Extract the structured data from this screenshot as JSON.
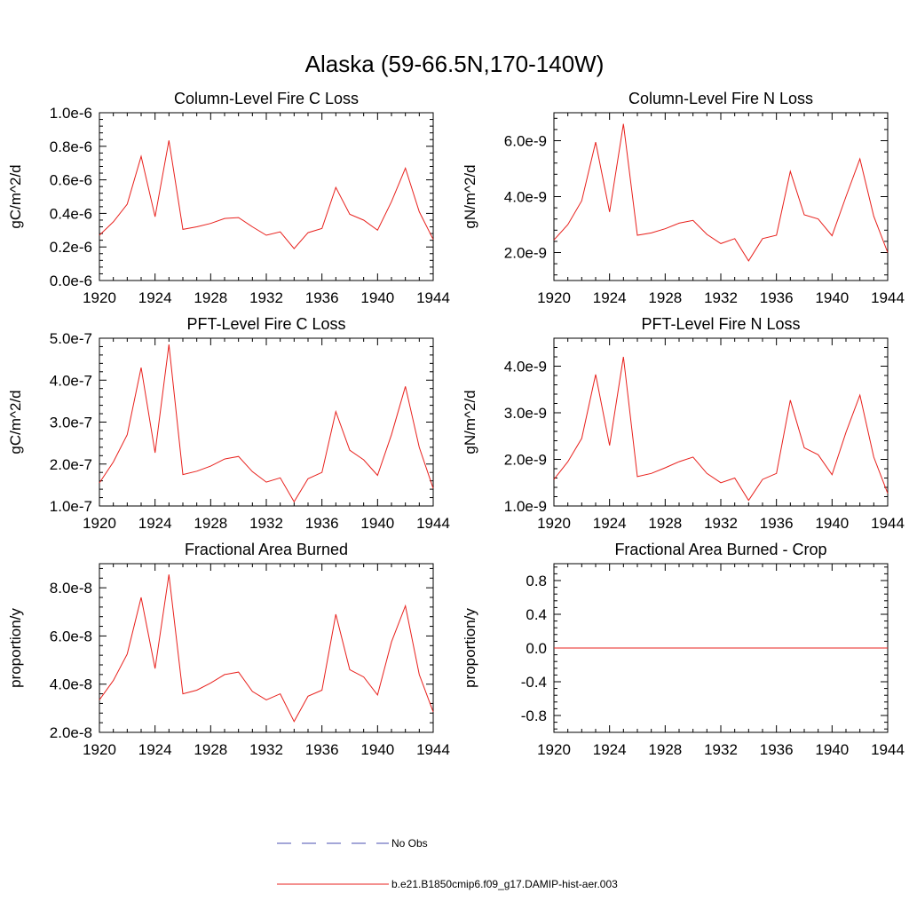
{
  "figure": {
    "title": "Alaska (59-66.5N,170-140W)"
  },
  "colors": {
    "model": "#e8201c",
    "obs": "#4a4fb0",
    "axis": "#000000"
  },
  "legend": {
    "obs_label": "No Obs",
    "model_label": "b.e21.B1850cmip6.f09_g17.DAMIP-hist-aer.003"
  },
  "chart_data": [
    {
      "type": "line",
      "title": "Column-Level Fire C Loss",
      "ylabel": "gC/m^2/d",
      "xlim": [
        1920,
        1944
      ],
      "ylim": [
        0,
        1e-06
      ],
      "xticks": [
        1920,
        1924,
        1928,
        1932,
        1936,
        1940,
        1944
      ],
      "yticks": [
        0,
        2e-07,
        4e-07,
        6e-07,
        8e-07,
        1e-06
      ],
      "ytick_labels": [
        "0.0e-6",
        "0.2e-6",
        "0.4e-6",
        "0.6e-6",
        "0.8e-6",
        "1.0e-6"
      ],
      "x": [
        1920,
        1921,
        1922,
        1923,
        1924,
        1925,
        1926,
        1927,
        1928,
        1929,
        1930,
        1931,
        1932,
        1933,
        1934,
        1935,
        1936,
        1937,
        1938,
        1939,
        1940,
        1941,
        1942,
        1943,
        1944
      ],
      "series": [
        {
          "name": "b.e21.B1850cmip6.f09_g17.DAMIP-hist-aer.003",
          "values": [
            2.7e-07,
            3.5e-07,
            4.55e-07,
            7.4e-07,
            3.8e-07,
            8.35e-07,
            3.05e-07,
            3.2e-07,
            3.4e-07,
            3.7e-07,
            3.75e-07,
            3.2e-07,
            2.7e-07,
            2.9e-07,
            1.9e-07,
            2.85e-07,
            3.1e-07,
            5.55e-07,
            3.95e-07,
            3.6e-07,
            3e-07,
            4.7e-07,
            6.7e-07,
            4.1e-07,
            2.45e-07
          ]
        }
      ]
    },
    {
      "type": "line",
      "title": "Column-Level Fire N Loss",
      "ylabel": "gN/m^2/d",
      "xlim": [
        1920,
        1944
      ],
      "ylim": [
        1e-09,
        7e-09
      ],
      "xticks": [
        1920,
        1924,
        1928,
        1932,
        1936,
        1940,
        1944
      ],
      "yticks": [
        2e-09,
        4e-09,
        6e-09
      ],
      "ytick_labels": [
        "2.0e-9",
        "4.0e-9",
        "6.0e-9"
      ],
      "x": [
        1920,
        1921,
        1922,
        1923,
        1924,
        1925,
        1926,
        1927,
        1928,
        1929,
        1930,
        1931,
        1932,
        1933,
        1934,
        1935,
        1936,
        1937,
        1938,
        1939,
        1940,
        1941,
        1942,
        1943,
        1944
      ],
      "series": [
        {
          "name": "b.e21.B1850cmip6.f09_g17.DAMIP-hist-aer.003",
          "values": [
            2.45e-09,
            3e-09,
            3.85e-09,
            5.95e-09,
            3.45e-09,
            6.6e-09,
            2.62e-09,
            2.7e-09,
            2.85e-09,
            3.05e-09,
            3.15e-09,
            2.65e-09,
            2.32e-09,
            2.5e-09,
            1.7e-09,
            2.5e-09,
            2.62e-09,
            4.9e-09,
            3.35e-09,
            3.2e-09,
            2.6e-09,
            4e-09,
            5.35e-09,
            3.3e-09,
            2e-09
          ]
        }
      ]
    },
    {
      "type": "line",
      "title": "PFT-Level Fire C Loss",
      "ylabel": "gC/m^2/d",
      "xlim": [
        1920,
        1944
      ],
      "ylim": [
        1e-07,
        5e-07
      ],
      "xticks": [
        1920,
        1924,
        1928,
        1932,
        1936,
        1940,
        1944
      ],
      "yticks": [
        1e-07,
        2e-07,
        3e-07,
        4e-07,
        5e-07
      ],
      "ytick_labels": [
        "1.0e-7",
        "2.0e-7",
        "3.0e-7",
        "4.0e-7",
        "5.0e-7"
      ],
      "x": [
        1920,
        1921,
        1922,
        1923,
        1924,
        1925,
        1926,
        1927,
        1928,
        1929,
        1930,
        1931,
        1932,
        1933,
        1934,
        1935,
        1936,
        1937,
        1938,
        1939,
        1940,
        1941,
        1942,
        1943,
        1944
      ],
      "series": [
        {
          "name": "b.e21.B1850cmip6.f09_g17.DAMIP-hist-aer.003",
          "values": [
            1.55e-07,
            2.05e-07,
            2.7e-07,
            4.3e-07,
            2.27e-07,
            4.85e-07,
            1.75e-07,
            1.83e-07,
            1.95e-07,
            2.12e-07,
            2.18e-07,
            1.82e-07,
            1.57e-07,
            1.67e-07,
            1.1e-07,
            1.65e-07,
            1.8e-07,
            3.25e-07,
            2.33e-07,
            2.1e-07,
            1.73e-07,
            2.7e-07,
            3.85e-07,
            2.4e-07,
            1.42e-07
          ]
        }
      ]
    },
    {
      "type": "line",
      "title": "PFT-Level Fire N Loss",
      "ylabel": "gN/m^2/d",
      "xlim": [
        1920,
        1944
      ],
      "ylim": [
        1e-09,
        4.6e-09
      ],
      "xticks": [
        1920,
        1924,
        1928,
        1932,
        1936,
        1940,
        1944
      ],
      "yticks": [
        1e-09,
        2e-09,
        3e-09,
        4e-09
      ],
      "ytick_labels": [
        "1.0e-9",
        "2.0e-9",
        "3.0e-9",
        "4.0e-9"
      ],
      "x": [
        1920,
        1921,
        1922,
        1923,
        1924,
        1925,
        1926,
        1927,
        1928,
        1929,
        1930,
        1931,
        1932,
        1933,
        1934,
        1935,
        1936,
        1937,
        1938,
        1939,
        1940,
        1941,
        1942,
        1943,
        1944
      ],
      "series": [
        {
          "name": "b.e21.B1850cmip6.f09_g17.DAMIP-hist-aer.003",
          "values": [
            1.57e-09,
            1.95e-09,
            2.45e-09,
            3.82e-09,
            2.3e-09,
            4.2e-09,
            1.63e-09,
            1.7e-09,
            1.82e-09,
            1.95e-09,
            2.05e-09,
            1.7e-09,
            1.5e-09,
            1.6e-09,
            1.12e-09,
            1.57e-09,
            1.7e-09,
            3.27e-09,
            2.25e-09,
            2.1e-09,
            1.67e-09,
            2.58e-09,
            3.38e-09,
            2.05e-09,
            1.27e-09
          ]
        }
      ]
    },
    {
      "type": "line",
      "title": "Fractional Area Burned",
      "ylabel": "proportion/y",
      "xlim": [
        1920,
        1944
      ],
      "ylim": [
        2e-08,
        9e-08
      ],
      "xticks": [
        1920,
        1924,
        1928,
        1932,
        1936,
        1940,
        1944
      ],
      "yticks": [
        2e-08,
        4e-08,
        6e-08,
        8e-08
      ],
      "ytick_labels": [
        "2.0e-8",
        "4.0e-8",
        "6.0e-8",
        "8.0e-8"
      ],
      "x": [
        1920,
        1921,
        1922,
        1923,
        1924,
        1925,
        1926,
        1927,
        1928,
        1929,
        1930,
        1931,
        1932,
        1933,
        1934,
        1935,
        1936,
        1937,
        1938,
        1939,
        1940,
        1941,
        1942,
        1943,
        1944
      ],
      "series": [
        {
          "name": "b.e21.B1850cmip6.f09_g17.DAMIP-hist-aer.003",
          "values": [
            3.35e-08,
            4.15e-08,
            5.25e-08,
            7.6e-08,
            4.65e-08,
            8.55e-08,
            3.6e-08,
            3.75e-08,
            4.05e-08,
            4.4e-08,
            4.5e-08,
            3.7e-08,
            3.35e-08,
            3.6e-08,
            2.45e-08,
            3.5e-08,
            3.75e-08,
            6.9e-08,
            4.6e-08,
            4.3e-08,
            3.55e-08,
            5.75e-08,
            7.25e-08,
            4.4e-08,
            2.85e-08
          ]
        }
      ]
    },
    {
      "type": "line",
      "title": "Fractional Area Burned - Crop",
      "ylabel": "proportion/y",
      "xlim": [
        1920,
        1944
      ],
      "ylim": [
        -1.0,
        1.0
      ],
      "xticks": [
        1920,
        1924,
        1928,
        1932,
        1936,
        1940,
        1944
      ],
      "yticks": [
        -0.8,
        -0.4,
        0.0,
        0.4,
        0.8
      ],
      "ytick_labels": [
        "-0.8",
        "-0.4",
        "0.0",
        "0.4",
        "0.8"
      ],
      "x": [
        1920,
        1921,
        1922,
        1923,
        1924,
        1925,
        1926,
        1927,
        1928,
        1929,
        1930,
        1931,
        1932,
        1933,
        1934,
        1935,
        1936,
        1937,
        1938,
        1939,
        1940,
        1941,
        1942,
        1943,
        1944
      ],
      "series": [
        {
          "name": "b.e21.B1850cmip6.f09_g17.DAMIP-hist-aer.003",
          "values": [
            0,
            0,
            0,
            0,
            0,
            0,
            0,
            0,
            0,
            0,
            0,
            0,
            0,
            0,
            0,
            0,
            0,
            0,
            0,
            0,
            0,
            0,
            0,
            0,
            0
          ]
        }
      ]
    }
  ]
}
